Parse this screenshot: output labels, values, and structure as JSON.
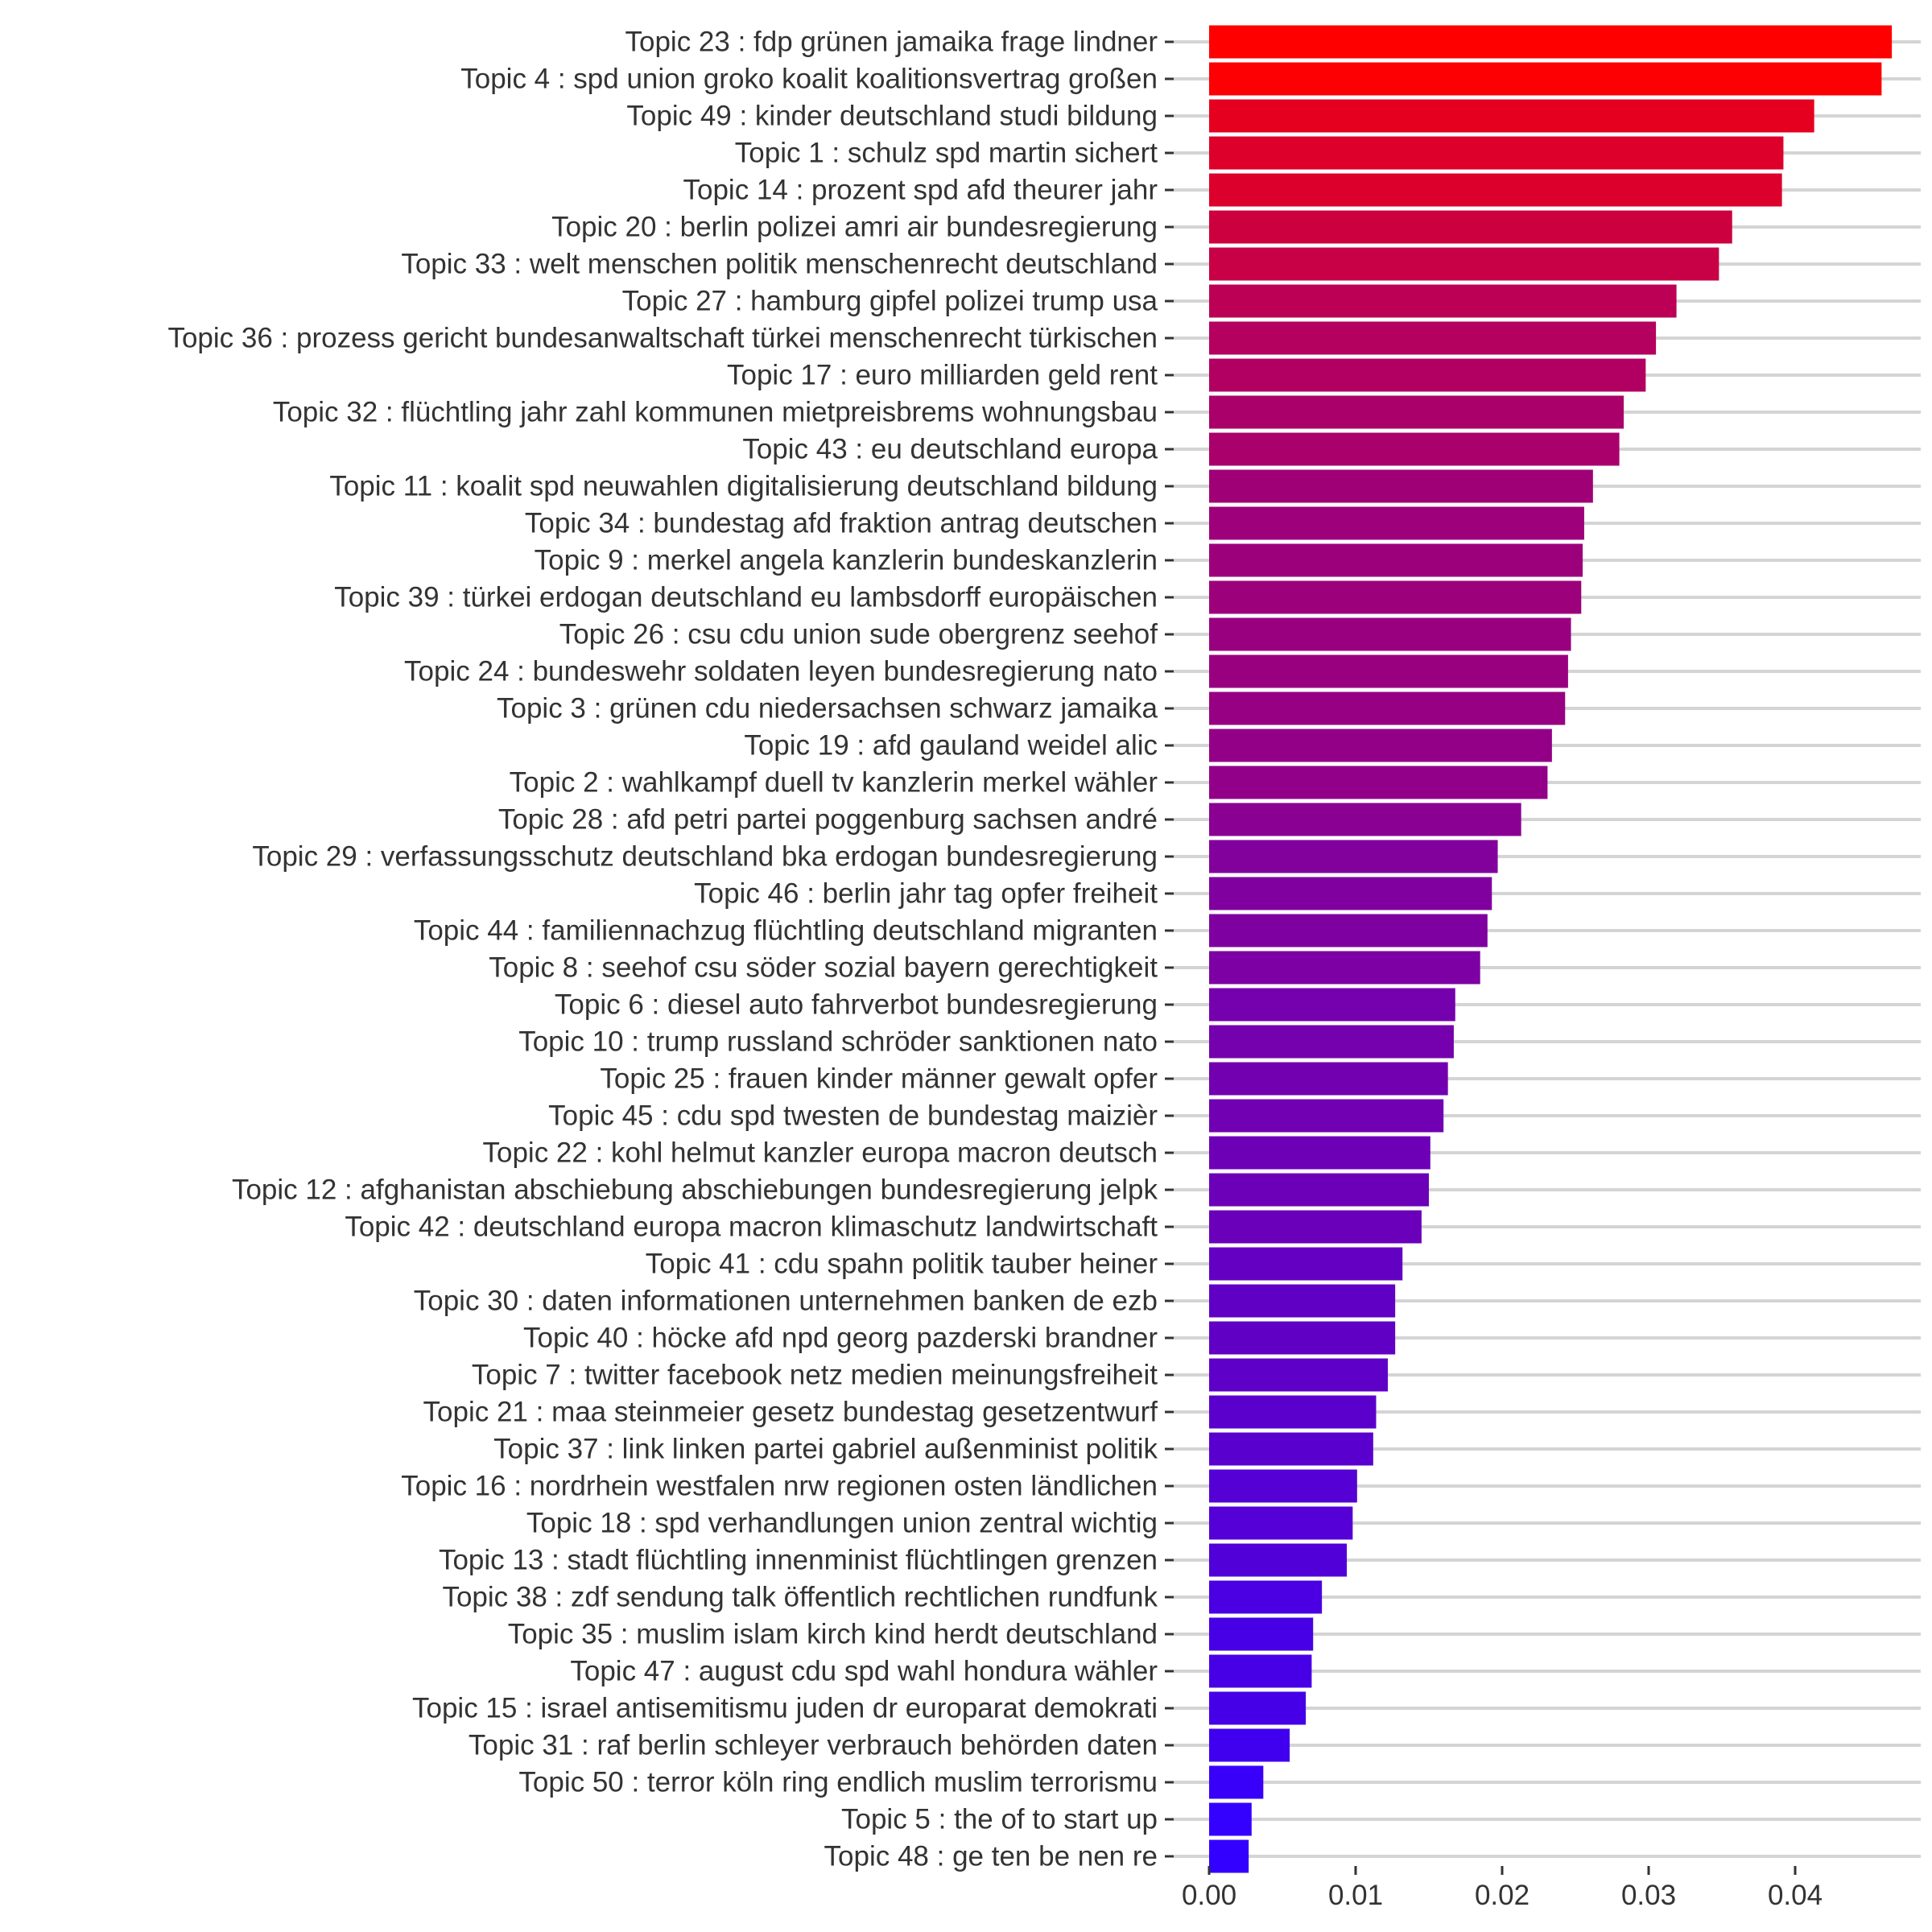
{
  "chart_data": {
    "type": "bar",
    "orientation": "horizontal",
    "title": "",
    "xlabel": "",
    "ylabel": "",
    "xlim": [
      0,
      0.047
    ],
    "x_ticks": [
      "0.00",
      "0.01",
      "0.02",
      "0.03",
      "0.04"
    ],
    "x_tick_values": [
      0,
      0.01,
      0.02,
      0.03,
      0.04
    ],
    "grid": "horizontal",
    "legend": "none",
    "color_gradient": {
      "high": "#ff0000",
      "low": "#3300ff"
    },
    "categories": [
      "Topic 23 : fdp grünen jamaika frage lindner",
      "Topic 4 : spd union groko koalit koalitionsvertrag großen",
      "Topic 49 : kinder deutschland studi bildung",
      "Topic 1 : schulz spd martin sichert",
      "Topic 14 : prozent spd afd theurer jahr",
      "Topic 20 : berlin polizei amri air bundesregierung",
      "Topic 33 : welt menschen politik menschenrecht deutschland",
      "Topic 27 : hamburg gipfel polizei trump usa",
      "Topic 36 : prozess gericht bundesanwaltschaft türkei menschenrecht türkischen",
      "Topic 17 : euro milliarden geld rent",
      "Topic 32 : flüchtling jahr zahl kommunen mietpreisbrems wohnungsbau",
      "Topic 43 : eu deutschland europa",
      "Topic 11 : koalit spd neuwahlen digitalisierung deutschland bildung",
      "Topic 34 : bundestag afd fraktion antrag deutschen",
      "Topic 9 : merkel angela kanzlerin bundeskanzlerin",
      "Topic 39 : türkei erdogan deutschland eu lambsdorff europäischen",
      "Topic 26 : csu cdu union sude obergrenz seehof",
      "Topic 24 : bundeswehr soldaten leyen bundesregierung nato",
      "Topic 3 : grünen cdu niedersachsen schwarz jamaika",
      "Topic 19 : afd gauland weidel alic",
      "Topic 2 : wahlkampf duell tv kanzlerin merkel wähler",
      "Topic 28 : afd petri partei poggenburg sachsen andré",
      "Topic 29 : verfassungsschutz deutschland bka erdogan bundesregierung",
      "Topic 46 : berlin jahr tag opfer freiheit",
      "Topic 44 : familiennachzug flüchtling deutschland migranten",
      "Topic 8 : seehof csu söder sozial bayern gerechtigkeit",
      "Topic 6 : diesel auto fahrverbot bundesregierung",
      "Topic 10 : trump russland schröder sanktionen nato",
      "Topic 25 : frauen kinder männer gewalt opfer",
      "Topic 45 : cdu spd twesten de bundestag maizièr",
      "Topic 22 : kohl helmut kanzler europa macron deutsch",
      "Topic 12 : afghanistan abschiebung abschiebungen bundesregierung jelpk",
      "Topic 42 : deutschland europa macron klimaschutz landwirtschaft",
      "Topic 41 : cdu spahn politik tauber heiner",
      "Topic 30 : daten informationen unternehmen banken de ezb",
      "Topic 40 : höcke afd npd georg pazderski brandner",
      "Topic 7 : twitter facebook netz medien meinungsfreiheit",
      "Topic 21 : maa steinmeier gesetz bundestag gesetzentwurf",
      "Topic 37 : link linken partei gabriel außenminist politik",
      "Topic 16 : nordrhein westfalen nrw regionen osten ländlichen",
      "Topic 18 : spd verhandlungen union zentral wichtig",
      "Topic 13 : stadt flüchtling innenminist flüchtlingen grenzen",
      "Topic 38 : zdf sendung talk öffentlich rechtlichen rundfunk",
      "Topic 35 : muslim islam kirch kind herdt deutschland",
      "Topic 47 : august cdu spd wahl hondura wähler",
      "Topic 15 : israel antisemitismu juden dr europarat demokrati",
      "Topic 31 : raf berlin schleyer verbrauch behörden daten",
      "Topic 50 : terror köln ring endlich muslim terrorismu",
      "Topic 5 : the of to start up",
      "Topic 48 : ge ten be nen re"
    ],
    "values": [
      0.0466,
      0.0459,
      0.0413,
      0.0392,
      0.0391,
      0.0357,
      0.0348,
      0.0319,
      0.0305,
      0.0298,
      0.0283,
      0.028,
      0.0262,
      0.0256,
      0.0255,
      0.0254,
      0.0247,
      0.0245,
      0.0243,
      0.0234,
      0.0231,
      0.0213,
      0.0197,
      0.0193,
      0.019,
      0.0185,
      0.0168,
      0.0167,
      0.0163,
      0.016,
      0.0151,
      0.015,
      0.0145,
      0.0132,
      0.0127,
      0.0127,
      0.0122,
      0.0114,
      0.0112,
      0.0101,
      0.0098,
      0.0094,
      0.0077,
      0.0071,
      0.007,
      0.0066,
      0.0055,
      0.0037,
      0.0029,
      0.0027
    ]
  }
}
